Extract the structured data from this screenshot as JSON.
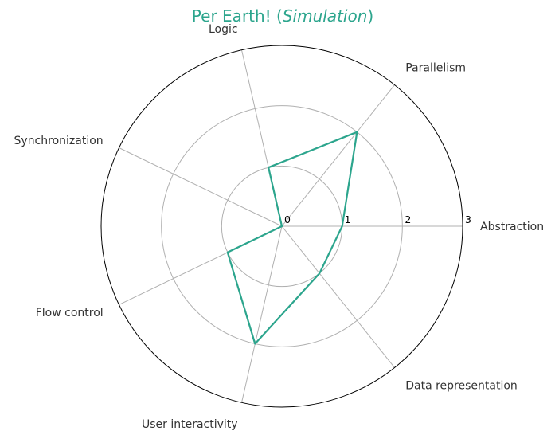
{
  "chart_data": {
    "type": "radar",
    "title": "Per Earth! (",
    "title_italic": "Simulation",
    "title_close": ")",
    "title_color": "#2ca58d",
    "axes": [
      "Abstraction",
      "Parallelism",
      "Logic",
      "Synchronization",
      "Flow control",
      "User interactivity",
      "Data representation"
    ],
    "series": [
      {
        "values": [
          1,
          2,
          1,
          0,
          1,
          2,
          1
        ],
        "color": "#2ca58d"
      }
    ],
    "rlim": [
      0,
      3
    ],
    "rticks": [
      "0",
      "1",
      "2",
      "3"
    ],
    "grid": true,
    "grid_color": "#b0b0b0",
    "frame_color": "#000000"
  }
}
